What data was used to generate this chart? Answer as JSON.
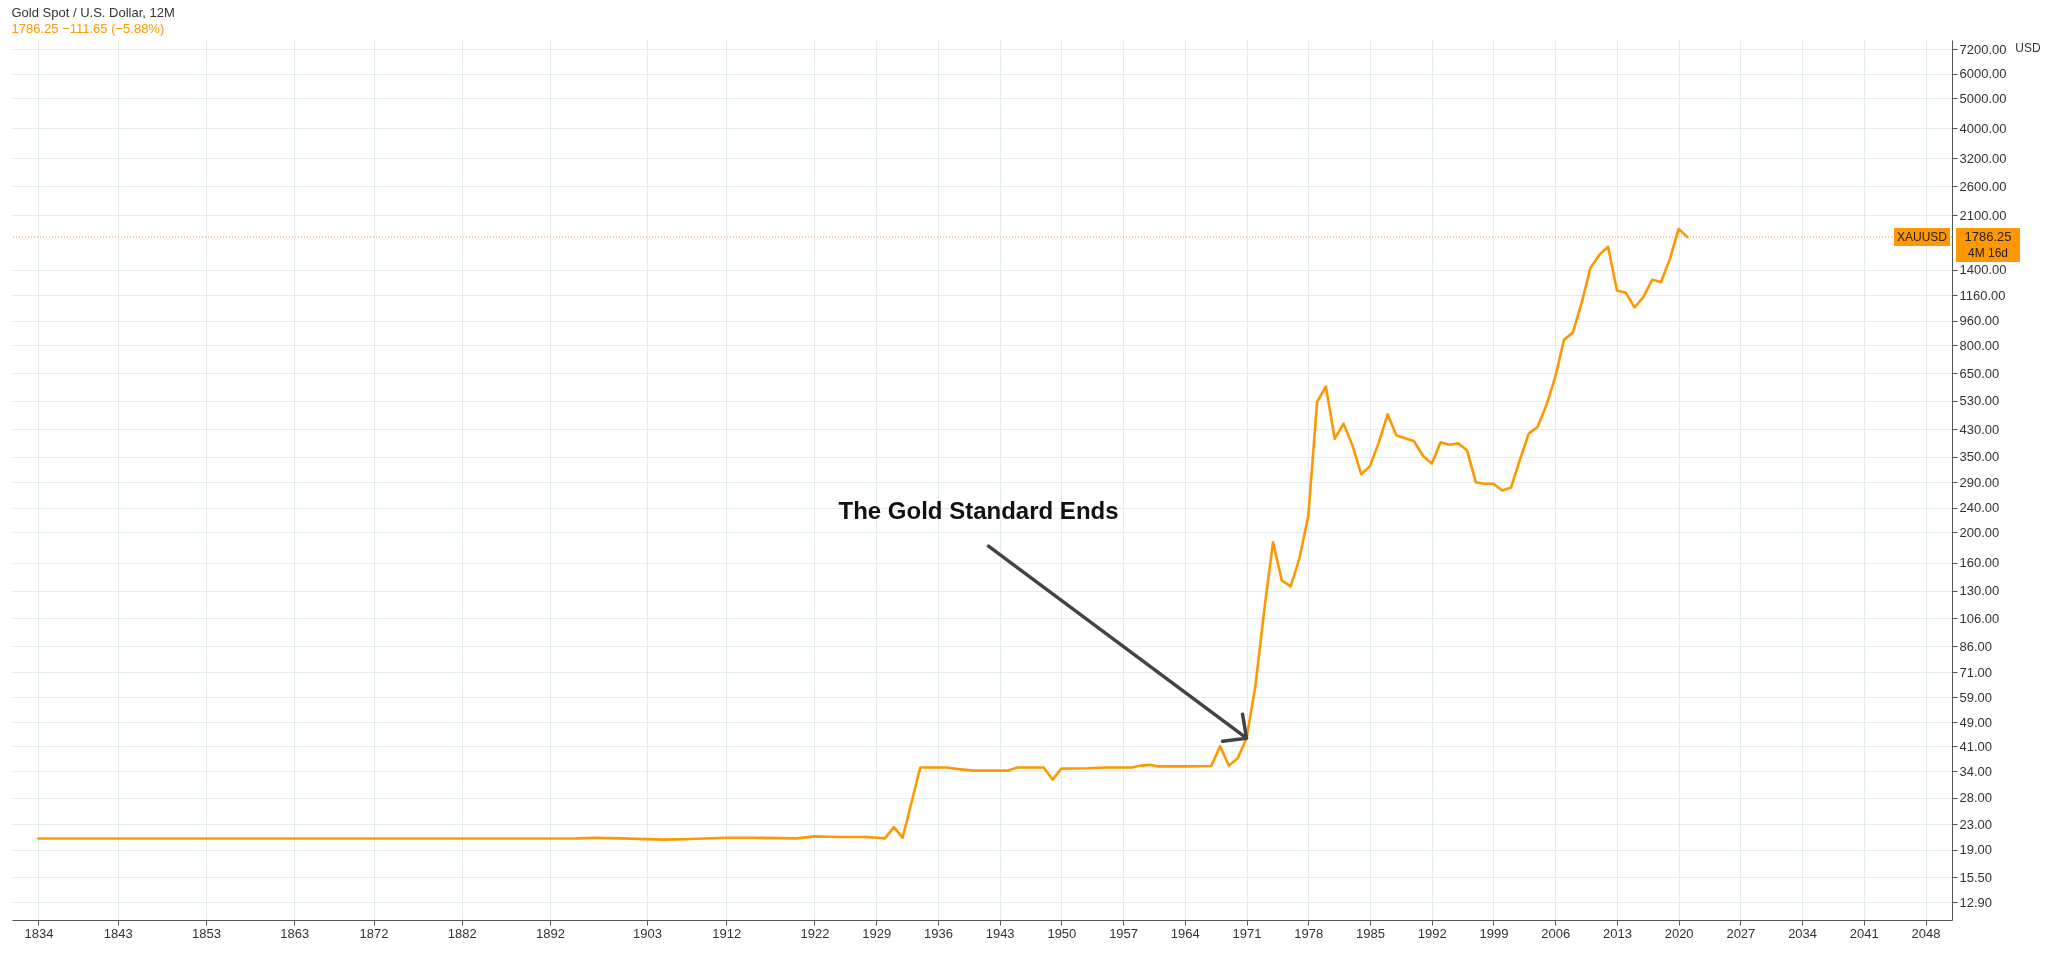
{
  "chart_data": {
    "type": "line",
    "title": "Gold Spot / U.S. Dollar, 12M",
    "subtitle": "1786.25  −111.65 (−5.88%)",
    "ylabel": "USD",
    "x": [
      1834,
      1850,
      1870,
      1890,
      1895,
      1897,
      1900,
      1905,
      1908,
      1912,
      1915,
      1920,
      1922,
      1925,
      1928,
      1930,
      1931,
      1932,
      1934,
      1937,
      1938,
      1940,
      1944,
      1945,
      1948,
      1949,
      1950,
      1953,
      1955,
      1958,
      1959,
      1960,
      1961,
      1964,
      1967,
      1968,
      1969,
      1970,
      1971,
      1972,
      1973,
      1974,
      1975,
      1976,
      1977,
      1978,
      1979,
      1980,
      1981,
      1982,
      1983,
      1984,
      1985,
      1986,
      1987,
      1988,
      1989,
      1990,
      1991,
      1992,
      1993,
      1994,
      1995,
      1996,
      1997,
      1998,
      1999,
      2000,
      2001,
      2002,
      2003,
      2004,
      2005,
      2006,
      2007,
      2008,
      2009,
      2010,
      2011,
      2012,
      2013,
      2014,
      2015,
      2016,
      2017,
      2018,
      2019,
      2020,
      2021
    ],
    "series": [
      {
        "color": "#ff9800",
        "values": [
          20.67,
          20.67,
          20.67,
          20.67,
          20.7,
          20.8,
          20.7,
          20.5,
          20.6,
          20.8,
          20.8,
          20.7,
          21.0,
          20.9,
          20.9,
          20.7,
          22.5,
          20.8,
          35,
          35,
          34.7,
          34.2,
          34.2,
          35,
          35,
          32,
          34.7,
          34.8,
          35,
          35,
          35.5,
          35.7,
          35.3,
          35.3,
          35.4,
          41,
          35.5,
          37.5,
          43.5,
          64,
          112,
          186,
          140,
          134,
          165,
          226,
          525,
          590,
          400,
          448,
          382,
          308,
          327,
          390,
          480,
          410,
          402,
          393,
          353,
          333,
          390,
          383,
          387,
          368,
          290,
          287,
          287,
          273,
          279,
          343,
          416,
          437,
          513,
          632,
          834,
          880,
          1096,
          1421,
          1565,
          1664,
          1202,
          1183,
          1060,
          1146,
          1302,
          1281,
          1517,
          1898,
          1786.25
        ]
      }
    ],
    "xlim": [
      1831,
      2051
    ],
    "xticks": [
      1834,
      1843,
      1853,
      1863,
      1872,
      1882,
      1892,
      1903,
      1912,
      1922,
      1929,
      1936,
      1943,
      1950,
      1957,
      1964,
      1971,
      1978,
      1985,
      1992,
      1999,
      2006,
      2013,
      2020,
      2027,
      2034,
      2041,
      2048
    ],
    "ylim": [
      11.3,
      7700
    ],
    "log": true,
    "yticks": [
      {
        "value": 12.9,
        "label": "12.90"
      },
      {
        "value": 15.5,
        "label": "15.50"
      },
      {
        "value": 19,
        "label": "19.00"
      },
      {
        "value": 23,
        "label": "23.00"
      },
      {
        "value": 28,
        "label": "28.00"
      },
      {
        "value": 34,
        "label": "34.00"
      },
      {
        "value": 41,
        "label": "41.00"
      },
      {
        "value": 49,
        "label": "49.00"
      },
      {
        "value": 59,
        "label": "59.00"
      },
      {
        "value": 71,
        "label": "71.00"
      },
      {
        "value": 86,
        "label": "86.00"
      },
      {
        "value": 106,
        "label": "106.00"
      },
      {
        "value": 130,
        "label": "130.00"
      },
      {
        "value": 160,
        "label": "160.00"
      },
      {
        "value": 200,
        "label": "200.00"
      },
      {
        "value": 240,
        "label": "240.00"
      },
      {
        "value": 290,
        "label": "290.00"
      },
      {
        "value": 350,
        "label": "350.00"
      },
      {
        "value": 430,
        "label": "430.00"
      },
      {
        "value": 530,
        "label": "530.00"
      },
      {
        "value": 650,
        "label": "650.00"
      },
      {
        "value": 800,
        "label": "800.00"
      },
      {
        "value": 960,
        "label": "960.00"
      },
      {
        "value": 1160,
        "label": "1160.00"
      },
      {
        "value": 1400,
        "label": "1400.00"
      },
      {
        "value": 2100,
        "label": "2100.00"
      },
      {
        "value": 2600,
        "label": "2600.00"
      },
      {
        "value": 3200,
        "label": "3200.00"
      },
      {
        "value": 4000,
        "label": "4000.00"
      },
      {
        "value": 5000,
        "label": "5000.00"
      },
      {
        "value": 6000,
        "label": "6000.00"
      },
      {
        "value": 7200,
        "label": "7200.00"
      }
    ],
    "grid": true,
    "ref_lines": [
      {
        "axis": "y",
        "value": 1786.25,
        "label": "1786.25",
        "color": "#ff9800",
        "line_style": "dotted"
      }
    ],
    "annotations": [
      {
        "text": "The Gold Standard Ends",
        "x": 1971,
        "y": 43.5
      },
      "XAUUSD",
      "4M 16d"
    ]
  }
}
